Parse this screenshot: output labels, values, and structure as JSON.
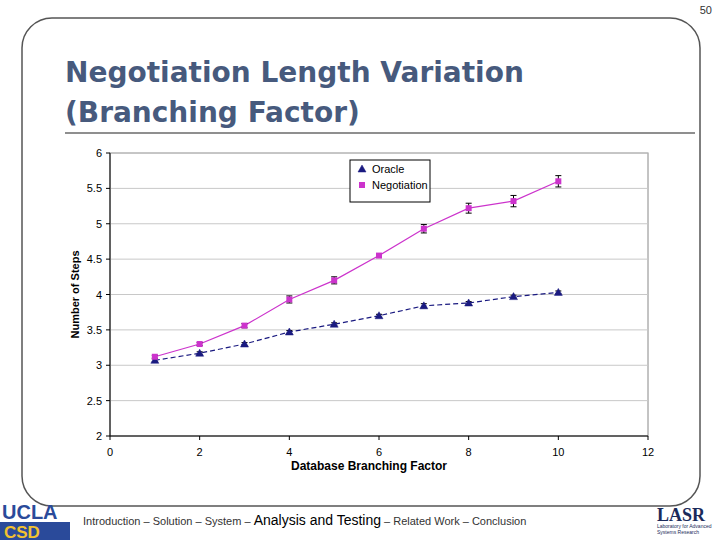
{
  "slide": {
    "page_number": "50",
    "title": [
      "Negotiation Length Variation",
      "(Branching Factor)"
    ],
    "footer": {
      "separator": " – ",
      "sections_before": [
        "Introduction",
        "Solution",
        "System"
      ],
      "current": "Analysis and Testing",
      "sections_after": [
        "Related Work",
        "Conclusion"
      ]
    },
    "logos": {
      "left": [
        "UCLA",
        "CSD"
      ],
      "right": {
        "name": "LASR",
        "caption": [
          "Laboratory for Advanced",
          "Systems Research"
        ]
      }
    }
  },
  "chart_data": {
    "type": "line",
    "x_label": "Database Branching Factor",
    "y_label": "Number of Steps",
    "x": [
      1,
      2,
      3,
      4,
      5,
      6,
      7,
      8,
      9,
      10
    ],
    "series": [
      {
        "name": "Oracle",
        "color": "#1a1a80",
        "marker": "triangle",
        "line_style": "dashed",
        "values": [
          3.07,
          3.17,
          3.3,
          3.47,
          3.58,
          3.7,
          3.84,
          3.88,
          3.97,
          4.03
        ],
        "error": [
          0.02,
          0.02,
          0.02,
          0.02,
          0.02,
          0.02,
          0.03,
          0.02,
          0.02,
          0.02
        ]
      },
      {
        "name": "Negotiation",
        "color": "#cc33cc",
        "marker": "square",
        "line_style": "solid",
        "values": [
          3.12,
          3.3,
          3.56,
          3.93,
          4.2,
          4.55,
          4.93,
          5.22,
          5.32,
          5.6
        ],
        "error": [
          0.02,
          0.02,
          0.03,
          0.05,
          0.05,
          0.02,
          0.06,
          0.07,
          0.08,
          0.08
        ]
      }
    ],
    "xlim": [
      0,
      12
    ],
    "xticks": [
      0,
      2,
      4,
      6,
      8,
      10,
      12
    ],
    "ylim": [
      2,
      6
    ],
    "yticks": [
      2,
      2.5,
      3,
      3.5,
      4,
      4.5,
      5,
      5.5,
      6
    ],
    "grid": true,
    "legend": "top-right"
  }
}
